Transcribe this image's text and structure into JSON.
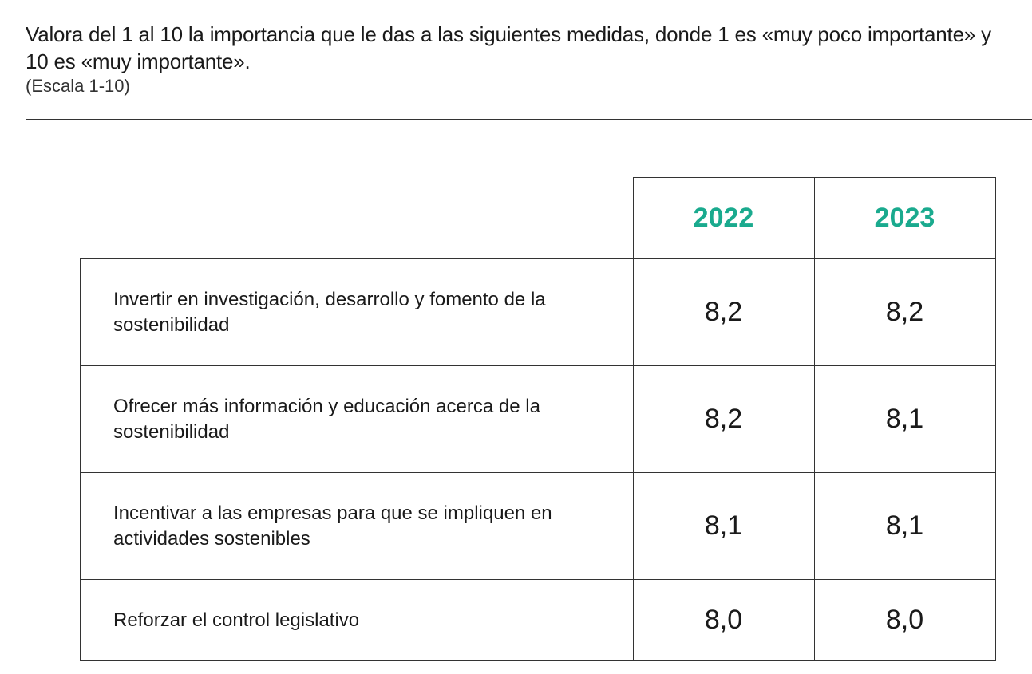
{
  "chart_data": {
    "type": "table",
    "title": "Valora del 1 al 10 la importancia que le das a las siguientes medidas, donde 1 es «muy poco importante» y 10 es «muy importante».",
    "subtitle": "(Escala 1-10)",
    "columns": [
      "2022",
      "2023"
    ],
    "rows": [
      {
        "label": "Invertir en investigación, desarrollo y fomento de la sostenibilidad",
        "values": [
          "8,2",
          "8,2"
        ]
      },
      {
        "label": "Ofrecer más información y educación acerca de la sostenibilidad",
        "values": [
          "8,2",
          "8,1"
        ]
      },
      {
        "label": "Incentivar a las empresas para que se impliquen en actividades sostenibles",
        "values": [
          "8,1",
          "8,1"
        ]
      },
      {
        "label": "Reforzar el control legislativo",
        "values": [
          "8,0",
          "8,0"
        ]
      }
    ],
    "colors": {
      "header_text": "#1aaa8e",
      "border": "#333333"
    }
  }
}
